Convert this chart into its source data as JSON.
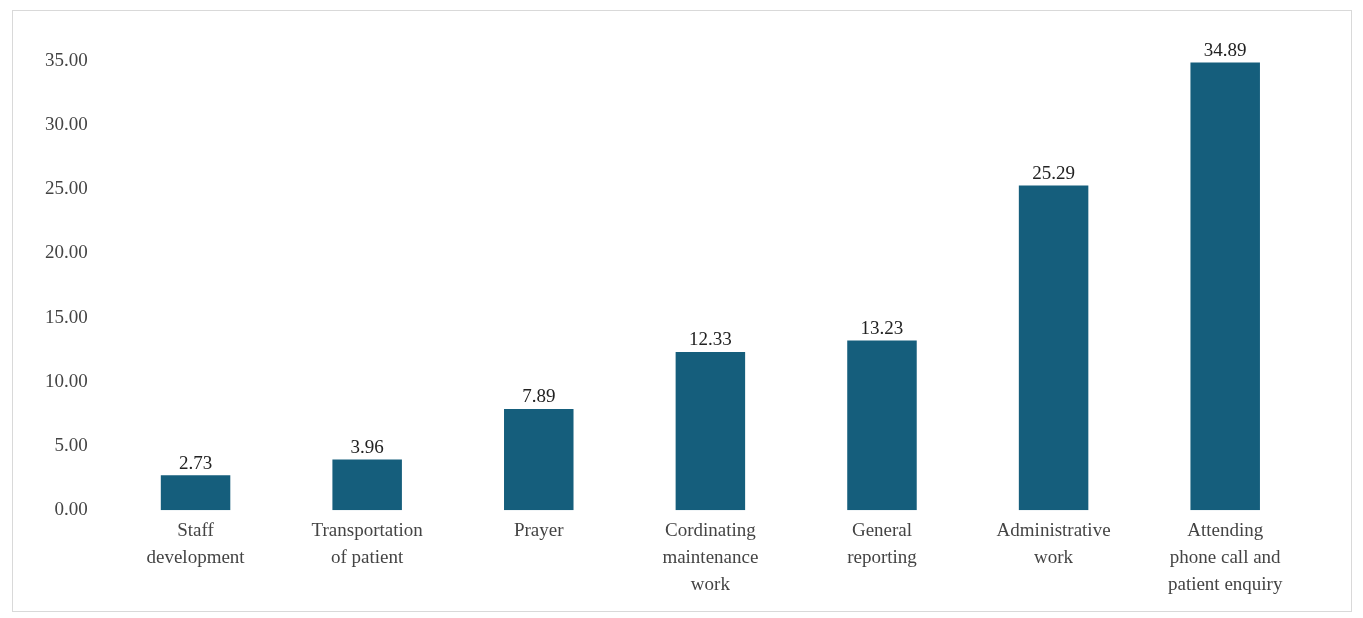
{
  "chart_data": {
    "type": "bar",
    "categories": [
      "Staff development",
      "Transportation of patient",
      "Prayer",
      "Cordinating maintenance work",
      "General reporting",
      "Administrative work",
      "Attending phone call and patient enquiry"
    ],
    "values": [
      2.73,
      3.96,
      7.89,
      12.33,
      13.23,
      25.29,
      34.89
    ],
    "color": "#155e7c",
    "ylim": [
      0,
      35
    ],
    "yticks": [
      {
        "value": 0,
        "label": "0.00"
      },
      {
        "value": 5,
        "label": "5.00"
      },
      {
        "value": 10,
        "label": "10.00"
      },
      {
        "value": 15,
        "label": "15.00"
      },
      {
        "value": 20,
        "label": "20.00"
      },
      {
        "value": 25,
        "label": "25.00"
      },
      {
        "value": 30,
        "label": "30.00"
      },
      {
        "value": 35,
        "label": "35.00"
      }
    ],
    "grid": false,
    "legend": false,
    "data_labels": true
  }
}
